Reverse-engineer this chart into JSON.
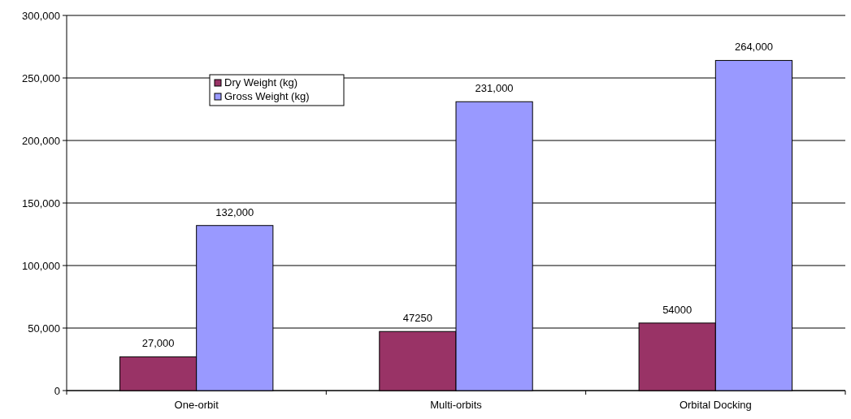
{
  "chart_data": {
    "type": "bar",
    "categories": [
      "One-orbit",
      "Multi-orbits",
      "Orbital Docking"
    ],
    "series": [
      {
        "name": "Dry Weight (kg)",
        "color": "#993366",
        "values": [
          27000,
          47250,
          54000
        ],
        "value_labels": [
          "27,000",
          "47250",
          "54000"
        ]
      },
      {
        "name": "Gross Weight (kg)",
        "color": "#9999ff",
        "values": [
          132000,
          231000,
          264000
        ],
        "value_labels": [
          "132,000",
          "231,000",
          "264,000"
        ]
      }
    ],
    "ylim": [
      0,
      300000
    ],
    "yticks": [
      {
        "value": 0,
        "label": "0"
      },
      {
        "value": 50000,
        "label": "50,000"
      },
      {
        "value": 100000,
        "label": "100,000"
      },
      {
        "value": 150000,
        "label": "150,000"
      },
      {
        "value": 200000,
        "label": "200,000"
      },
      {
        "value": 250000,
        "label": "250,000"
      },
      {
        "value": 300000,
        "label": "300,000"
      }
    ],
    "grid": "y",
    "legend": "top left"
  }
}
